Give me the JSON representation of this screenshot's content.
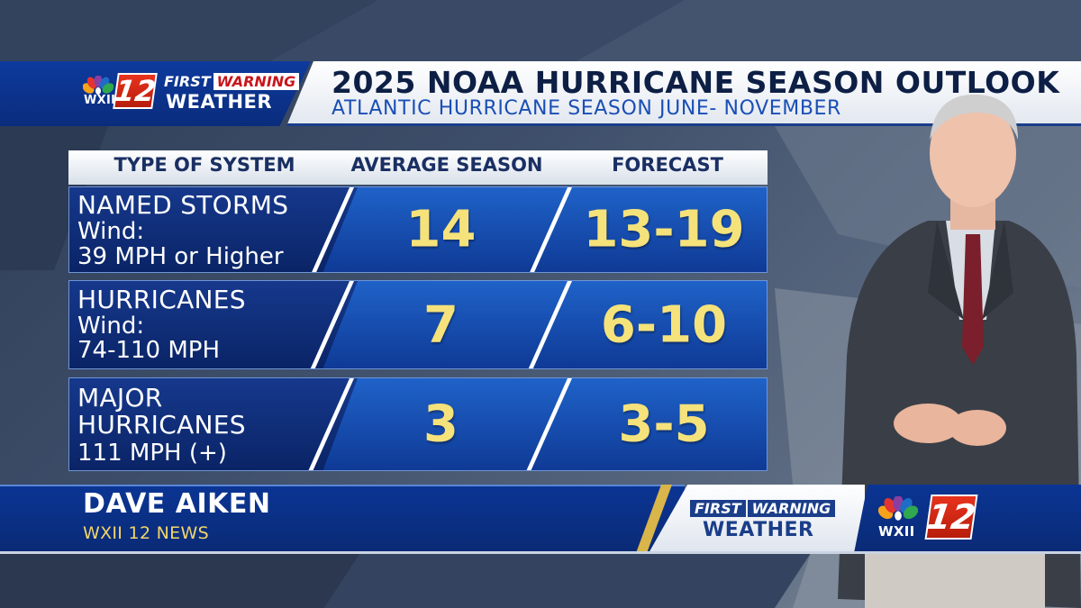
{
  "header": {
    "station_logo_number": "12",
    "station_call": "WXII",
    "brand_first": "FIRST",
    "brand_warning": "WARNING",
    "brand_weather": "WEATHER",
    "title": "2025 NOAA HURRICANE SEASON OUTLOOK",
    "subtitle": "ATLANTIC HURRICANE SEASON JUNE- NOVEMBER"
  },
  "table": {
    "columns": [
      "TYPE OF SYSTEM",
      "AVERAGE SEASON",
      "FORECAST"
    ],
    "rows": [
      {
        "title": "NAMED STORMS",
        "line2": "Wind:",
        "line3": "39 MPH or Higher",
        "average": "14",
        "forecast": "13-19"
      },
      {
        "title": "HURRICANES",
        "line2": "Wind:",
        "line3": "74-110 MPH",
        "average": "7",
        "forecast": "6-10"
      },
      {
        "title": "MAJOR",
        "line2": "HURRICANES",
        "line3": "111 MPH (+)",
        "average": "3",
        "forecast": "3-5"
      }
    ]
  },
  "lower_third": {
    "name": "DAVE AIKEN",
    "station": "WXII 12 NEWS",
    "brand_first": "FIRST",
    "brand_warning": "WARNING",
    "brand_weather": "WEATHER",
    "logo_call": "WXII",
    "logo_number": "12"
  },
  "colors": {
    "navy": "#0a2a75",
    "row_blue": "#1f62c8",
    "value_yellow": "#f5e27a",
    "station_red": "#c8151b",
    "gold": "#d9b54a"
  }
}
